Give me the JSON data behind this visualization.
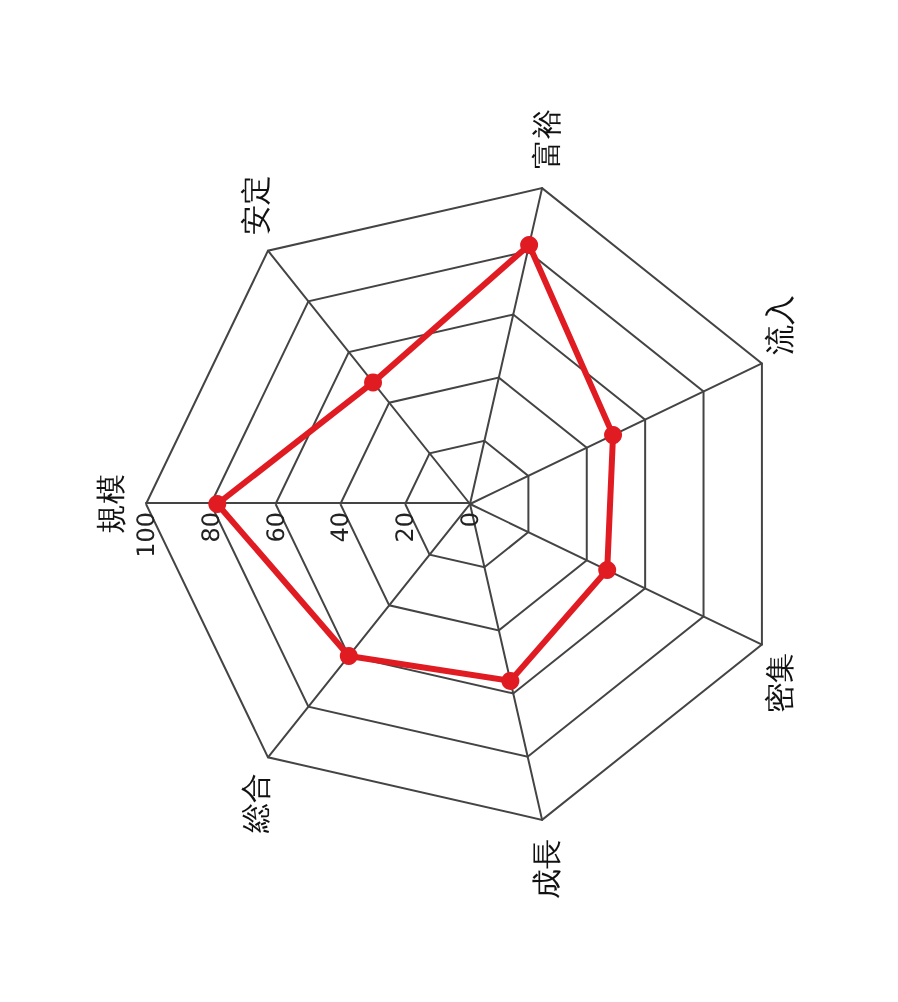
{
  "chart_data": {
    "type": "radar",
    "categories": [
      "規模",
      "安定",
      "富裕",
      "流入",
      "密集",
      "成長",
      "総合"
    ],
    "series": [
      {
        "color": "#e01b22",
        "values": [
          78,
          48,
          82,
          49,
          47,
          56,
          60
        ]
      }
    ],
    "ylim": [
      0,
      100
    ],
    "yticks": [
      0,
      20,
      40,
      60,
      80,
      100
    ],
    "marker": "circle"
  }
}
